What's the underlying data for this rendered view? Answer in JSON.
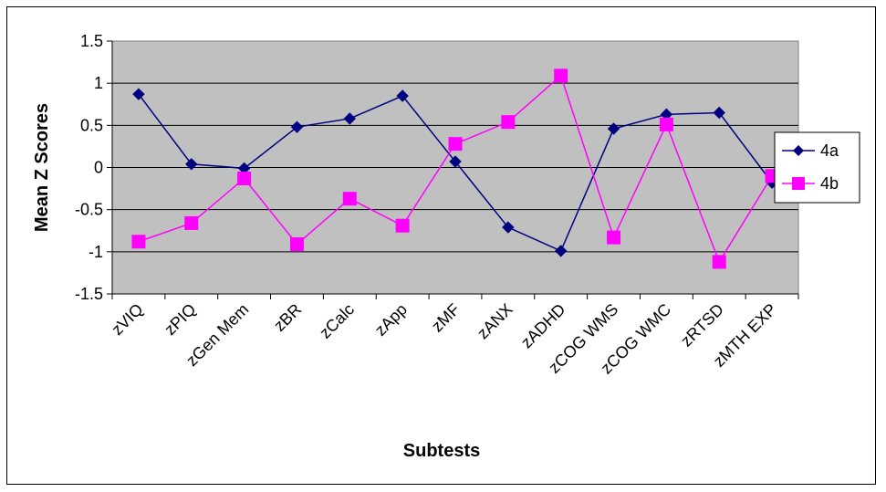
{
  "chart_data": {
    "type": "line",
    "title": "",
    "xlabel": "Subtests",
    "ylabel": "Mean Z Scores",
    "ylim": [
      -1.5,
      1.5
    ],
    "yticks": [
      1.5,
      1,
      0.5,
      0,
      -0.5,
      -1,
      -1.5
    ],
    "ytick_labels": [
      "1.5",
      "1",
      "0.5",
      "0",
      "-0.5",
      "-1",
      "-1.5"
    ],
    "categories": [
      "zVIQ",
      "zPIQ",
      "zGen Mem",
      "zBR",
      "zCalc",
      "zApp",
      "zMF",
      "zANX",
      "zADHD",
      "zCOG WMS",
      "zCOG WMC",
      "zRTSD",
      "zMTH EXP"
    ],
    "grid": true,
    "legend_position": "right",
    "plot_background": "#c0c0c0",
    "series": [
      {
        "name": "4a",
        "color": "#000080",
        "marker": "diamond",
        "values": [
          0.87,
          0.04,
          -0.01,
          0.48,
          0.58,
          0.85,
          0.07,
          -0.71,
          -0.99,
          0.46,
          0.63,
          0.65,
          -0.18
        ]
      },
      {
        "name": "4b",
        "color": "#ff00ff",
        "marker": "square",
        "values": [
          -0.88,
          -0.66,
          -0.13,
          -0.91,
          -0.37,
          -0.69,
          0.28,
          0.54,
          1.09,
          -0.83,
          0.51,
          -1.12,
          -0.1
        ]
      }
    ]
  }
}
